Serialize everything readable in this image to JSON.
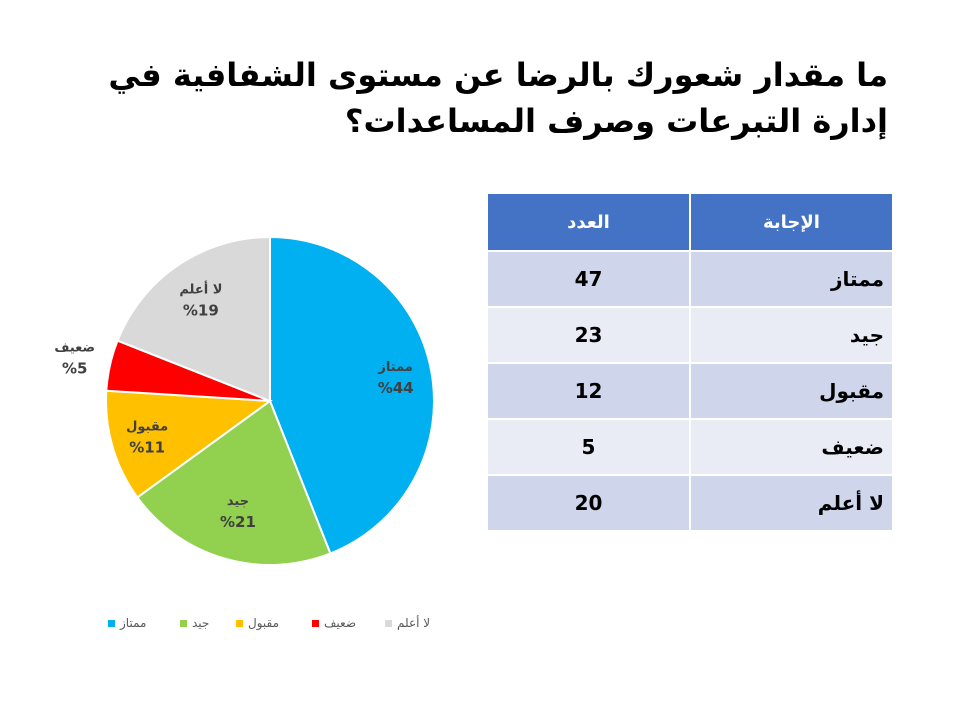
{
  "title": "ما مقدار شعورك بالرضا عن مستوى الشفافية في إدارة التبرعات وصرف المساعدات؟",
  "table": {
    "headers": {
      "answer": "الإجابة",
      "count": "العدد"
    },
    "rows": [
      {
        "answer": "ممتاز",
        "count": "47"
      },
      {
        "answer": "جيد",
        "count": "23"
      },
      {
        "answer": "مقبول",
        "count": "12"
      },
      {
        "answer": "ضعيف",
        "count": "5"
      },
      {
        "answer": "لا أعلم",
        "count": "20"
      }
    ]
  },
  "chart_data": {
    "type": "pie",
    "categories": [
      "ممتاز",
      "جيد",
      "مقبول",
      "ضعيف",
      "لا أعلم"
    ],
    "values": [
      44,
      21,
      11,
      5,
      19
    ],
    "labels": [
      "%44",
      "%21",
      "%11",
      "%5",
      "%19"
    ],
    "colors": [
      "#00B0F0",
      "#92D050",
      "#FFC000",
      "#FF0000",
      "#D9D9D9"
    ],
    "legend_position": "bottom",
    "start_angle": "12 o'clock, clockwise"
  }
}
